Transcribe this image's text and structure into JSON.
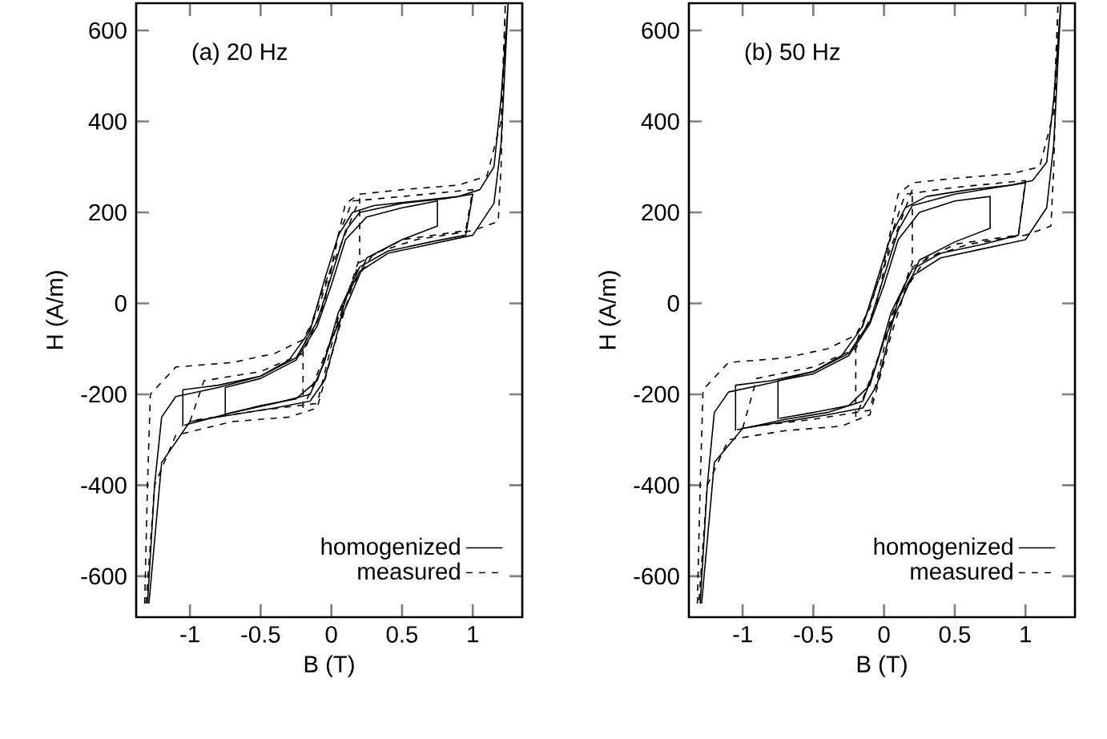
{
  "chart_data": [
    {
      "type": "line",
      "xlabel": "B (T)",
      "ylabel": "H (A/m)",
      "annotations": [
        "(a) 20 Hz"
      ],
      "xlim": [
        -1.38,
        1.35
      ],
      "ylim": [
        -690,
        660
      ],
      "xticks": [
        -1,
        -0.5,
        0,
        0.5,
        1
      ],
      "yticks": [
        -600,
        -400,
        -200,
        0,
        200,
        400,
        600
      ],
      "legend": "bottom right",
      "grid": false,
      "marker": "none",
      "series": [
        {
          "name": "homogenized",
          "color": "#000000",
          "line_style": "solid",
          "x": [
            -1.3,
            -1.25,
            -1.2,
            -1.1,
            -0.8,
            -0.5,
            -0.3,
            -0.15,
            -0.05,
            0.05,
            0.15,
            0.3,
            0.6,
            0.9,
            1.05,
            1.15,
            1.2,
            1.25,
            1.2,
            1.15,
            1.0,
            0.7,
            0.4,
            0.2,
            0.1,
            0.03,
            -0.05,
            -0.15,
            -0.4,
            -0.7,
            -1.0,
            -1.2,
            -1.29
          ],
          "values": [
            -660,
            -400,
            -250,
            -205,
            -185,
            -160,
            -125,
            -60,
            50,
            150,
            200,
            215,
            225,
            235,
            250,
            300,
            450,
            660,
            350,
            220,
            150,
            130,
            110,
            70,
            10,
            -80,
            -170,
            -215,
            -230,
            -245,
            -260,
            -350,
            -660
          ]
        },
        {
          "name": "measured",
          "color": "#000000",
          "line_style": "dashed",
          "x": [
            -1.32,
            -1.3,
            -1.28,
            -1.1,
            -0.7,
            -0.4,
            -0.2,
            -0.1,
            0.0,
            0.1,
            0.2,
            0.5,
            0.9,
            1.1,
            1.2,
            1.23,
            1.2,
            1.18,
            1.0,
            0.6,
            0.3,
            0.15,
            0.05,
            -0.1,
            -0.3,
            -0.7,
            -1.1,
            -1.25,
            -1.31
          ],
          "values": [
            -660,
            -400,
            -200,
            -140,
            -130,
            -110,
            -80,
            -20,
            80,
            220,
            240,
            250,
            260,
            280,
            400,
            660,
            300,
            180,
            160,
            140,
            110,
            40,
            -60,
            -230,
            -250,
            -260,
            -290,
            -400,
            -660
          ]
        },
        {
          "color": "#000000",
          "line_style": "solid",
          "x": [
            -1.05,
            -1.05,
            -0.8,
            -0.5,
            -0.25,
            -0.1,
            0.0,
            0.1,
            0.2,
            0.5,
            0.8,
            1.0,
            0.95,
            0.7,
            0.4,
            0.2,
            0.05,
            -0.05,
            -0.15,
            -0.4,
            -0.7,
            -1.04
          ],
          "values": [
            -270,
            -190,
            -180,
            -160,
            -120,
            -40,
            60,
            160,
            200,
            220,
            230,
            240,
            150,
            135,
            115,
            80,
            -20,
            -130,
            -200,
            -220,
            -240,
            -268
          ]
        },
        {
          "color": "#000000",
          "line_style": "solid",
          "x": [
            -0.75,
            -0.75,
            -0.5,
            -0.25,
            -0.1,
            0.0,
            0.1,
            0.25,
            0.5,
            0.75,
            0.75,
            0.5,
            0.25,
            0.1,
            0.0,
            -0.1,
            -0.25,
            -0.5,
            -0.74
          ],
          "values": [
            -245,
            -185,
            -165,
            -125,
            -50,
            40,
            140,
            190,
            210,
            225,
            170,
            140,
            100,
            -10,
            -80,
            -170,
            -210,
            -225,
            -243
          ]
        },
        {
          "color": "#000000",
          "line_style": "dashed",
          "x": [
            -1.0,
            -0.9,
            -0.5,
            -0.2,
            -0.05,
            0.05,
            0.15,
            0.5,
            1.0,
            0.95,
            0.5,
            0.2,
            0.05,
            -0.1,
            -0.5,
            -0.99
          ],
          "values": [
            -260,
            -170,
            -150,
            -110,
            0,
            150,
            225,
            235,
            250,
            160,
            140,
            90,
            -30,
            -220,
            -235,
            -258
          ]
        },
        {
          "color": "#000000",
          "line_style": "dashed",
          "x": [
            -0.2,
            -0.2,
            -0.05,
            0.2,
            0.2,
            0.05,
            -0.19
          ],
          "values": [
            -230,
            -100,
            40,
            230,
            100,
            -40,
            -225
          ]
        }
      ]
    },
    {
      "type": "line",
      "xlabel": "B (T)",
      "ylabel": "H (A/m)",
      "annotations": [
        "(b) 50 Hz"
      ],
      "xlim": [
        -1.38,
        1.35
      ],
      "ylim": [
        -690,
        660
      ],
      "xticks": [
        -1,
        -0.5,
        0,
        0.5,
        1
      ],
      "yticks": [
        -600,
        -400,
        -200,
        0,
        200,
        400,
        600
      ],
      "legend": "bottom right",
      "grid": false,
      "marker": "none",
      "series": [
        {
          "name": "homogenized",
          "color": "#000000",
          "line_style": "solid",
          "x": [
            -1.3,
            -1.25,
            -1.2,
            -1.1,
            -0.8,
            -0.5,
            -0.3,
            -0.15,
            -0.05,
            0.05,
            0.15,
            0.3,
            0.6,
            0.9,
            1.05,
            1.15,
            1.2,
            1.25,
            1.2,
            1.15,
            1.0,
            0.7,
            0.4,
            0.2,
            0.1,
            0.03,
            -0.05,
            -0.15,
            -0.4,
            -0.7,
            -1.0,
            -1.2,
            -1.29
          ],
          "values": [
            -660,
            -400,
            -240,
            -195,
            -175,
            -150,
            -115,
            -50,
            50,
            150,
            210,
            235,
            250,
            260,
            270,
            310,
            450,
            660,
            350,
            210,
            140,
            120,
            100,
            60,
            10,
            -80,
            -180,
            -230,
            -245,
            -260,
            -275,
            -350,
            -660
          ]
        },
        {
          "name": "measured",
          "color": "#000000",
          "line_style": "dashed",
          "x": [
            -1.32,
            -1.3,
            -1.28,
            -1.1,
            -0.7,
            -0.4,
            -0.2,
            -0.1,
            0.0,
            0.1,
            0.2,
            0.5,
            0.9,
            1.1,
            1.2,
            1.23,
            1.2,
            1.18,
            1.0,
            0.6,
            0.3,
            0.15,
            0.05,
            -0.1,
            -0.3,
            -0.7,
            -1.1,
            -1.25,
            -1.31
          ],
          "values": [
            -660,
            -400,
            -190,
            -130,
            -120,
            -100,
            -70,
            -10,
            90,
            240,
            265,
            275,
            285,
            300,
            420,
            660,
            300,
            170,
            150,
            130,
            100,
            30,
            -70,
            -245,
            -270,
            -280,
            -300,
            -400,
            -660
          ]
        },
        {
          "color": "#000000",
          "line_style": "solid",
          "x": [
            -1.05,
            -1.05,
            -0.8,
            -0.5,
            -0.25,
            -0.1,
            0.0,
            0.1,
            0.2,
            0.5,
            0.8,
            1.0,
            0.95,
            0.7,
            0.4,
            0.2,
            0.05,
            -0.05,
            -0.15,
            -0.4,
            -0.7,
            -1.04
          ],
          "values": [
            -280,
            -180,
            -170,
            -150,
            -110,
            -40,
            60,
            160,
            215,
            240,
            255,
            265,
            150,
            130,
            110,
            75,
            -20,
            -130,
            -215,
            -240,
            -255,
            -278
          ]
        },
        {
          "color": "#000000",
          "line_style": "solid",
          "x": [
            -0.75,
            -0.75,
            -0.5,
            -0.25,
            -0.1,
            0.0,
            0.1,
            0.25,
            0.5,
            0.75,
            0.75,
            0.5,
            0.25,
            0.1,
            0.0,
            -0.1,
            -0.25,
            -0.5,
            -0.74
          ],
          "values": [
            -255,
            -170,
            -155,
            -115,
            -45,
            40,
            140,
            200,
            225,
            235,
            165,
            135,
            95,
            -10,
            -80,
            -180,
            -225,
            -240,
            -253
          ]
        },
        {
          "color": "#000000",
          "line_style": "dashed",
          "x": [
            -1.0,
            -0.9,
            -0.5,
            -0.2,
            -0.05,
            0.05,
            0.15,
            0.5,
            1.0,
            0.95,
            0.5,
            0.2,
            0.05,
            -0.1,
            -0.5,
            -0.99
          ],
          "values": [
            -275,
            -165,
            -140,
            -100,
            0,
            150,
            240,
            255,
            270,
            150,
            130,
            80,
            -30,
            -235,
            -255,
            -273
          ]
        },
        {
          "color": "#000000",
          "line_style": "dashed",
          "x": [
            -0.2,
            -0.2,
            -0.05,
            0.2,
            0.2,
            0.05,
            -0.19
          ],
          "values": [
            -250,
            -90,
            40,
            250,
            90,
            -40,
            -245
          ]
        }
      ]
    }
  ]
}
